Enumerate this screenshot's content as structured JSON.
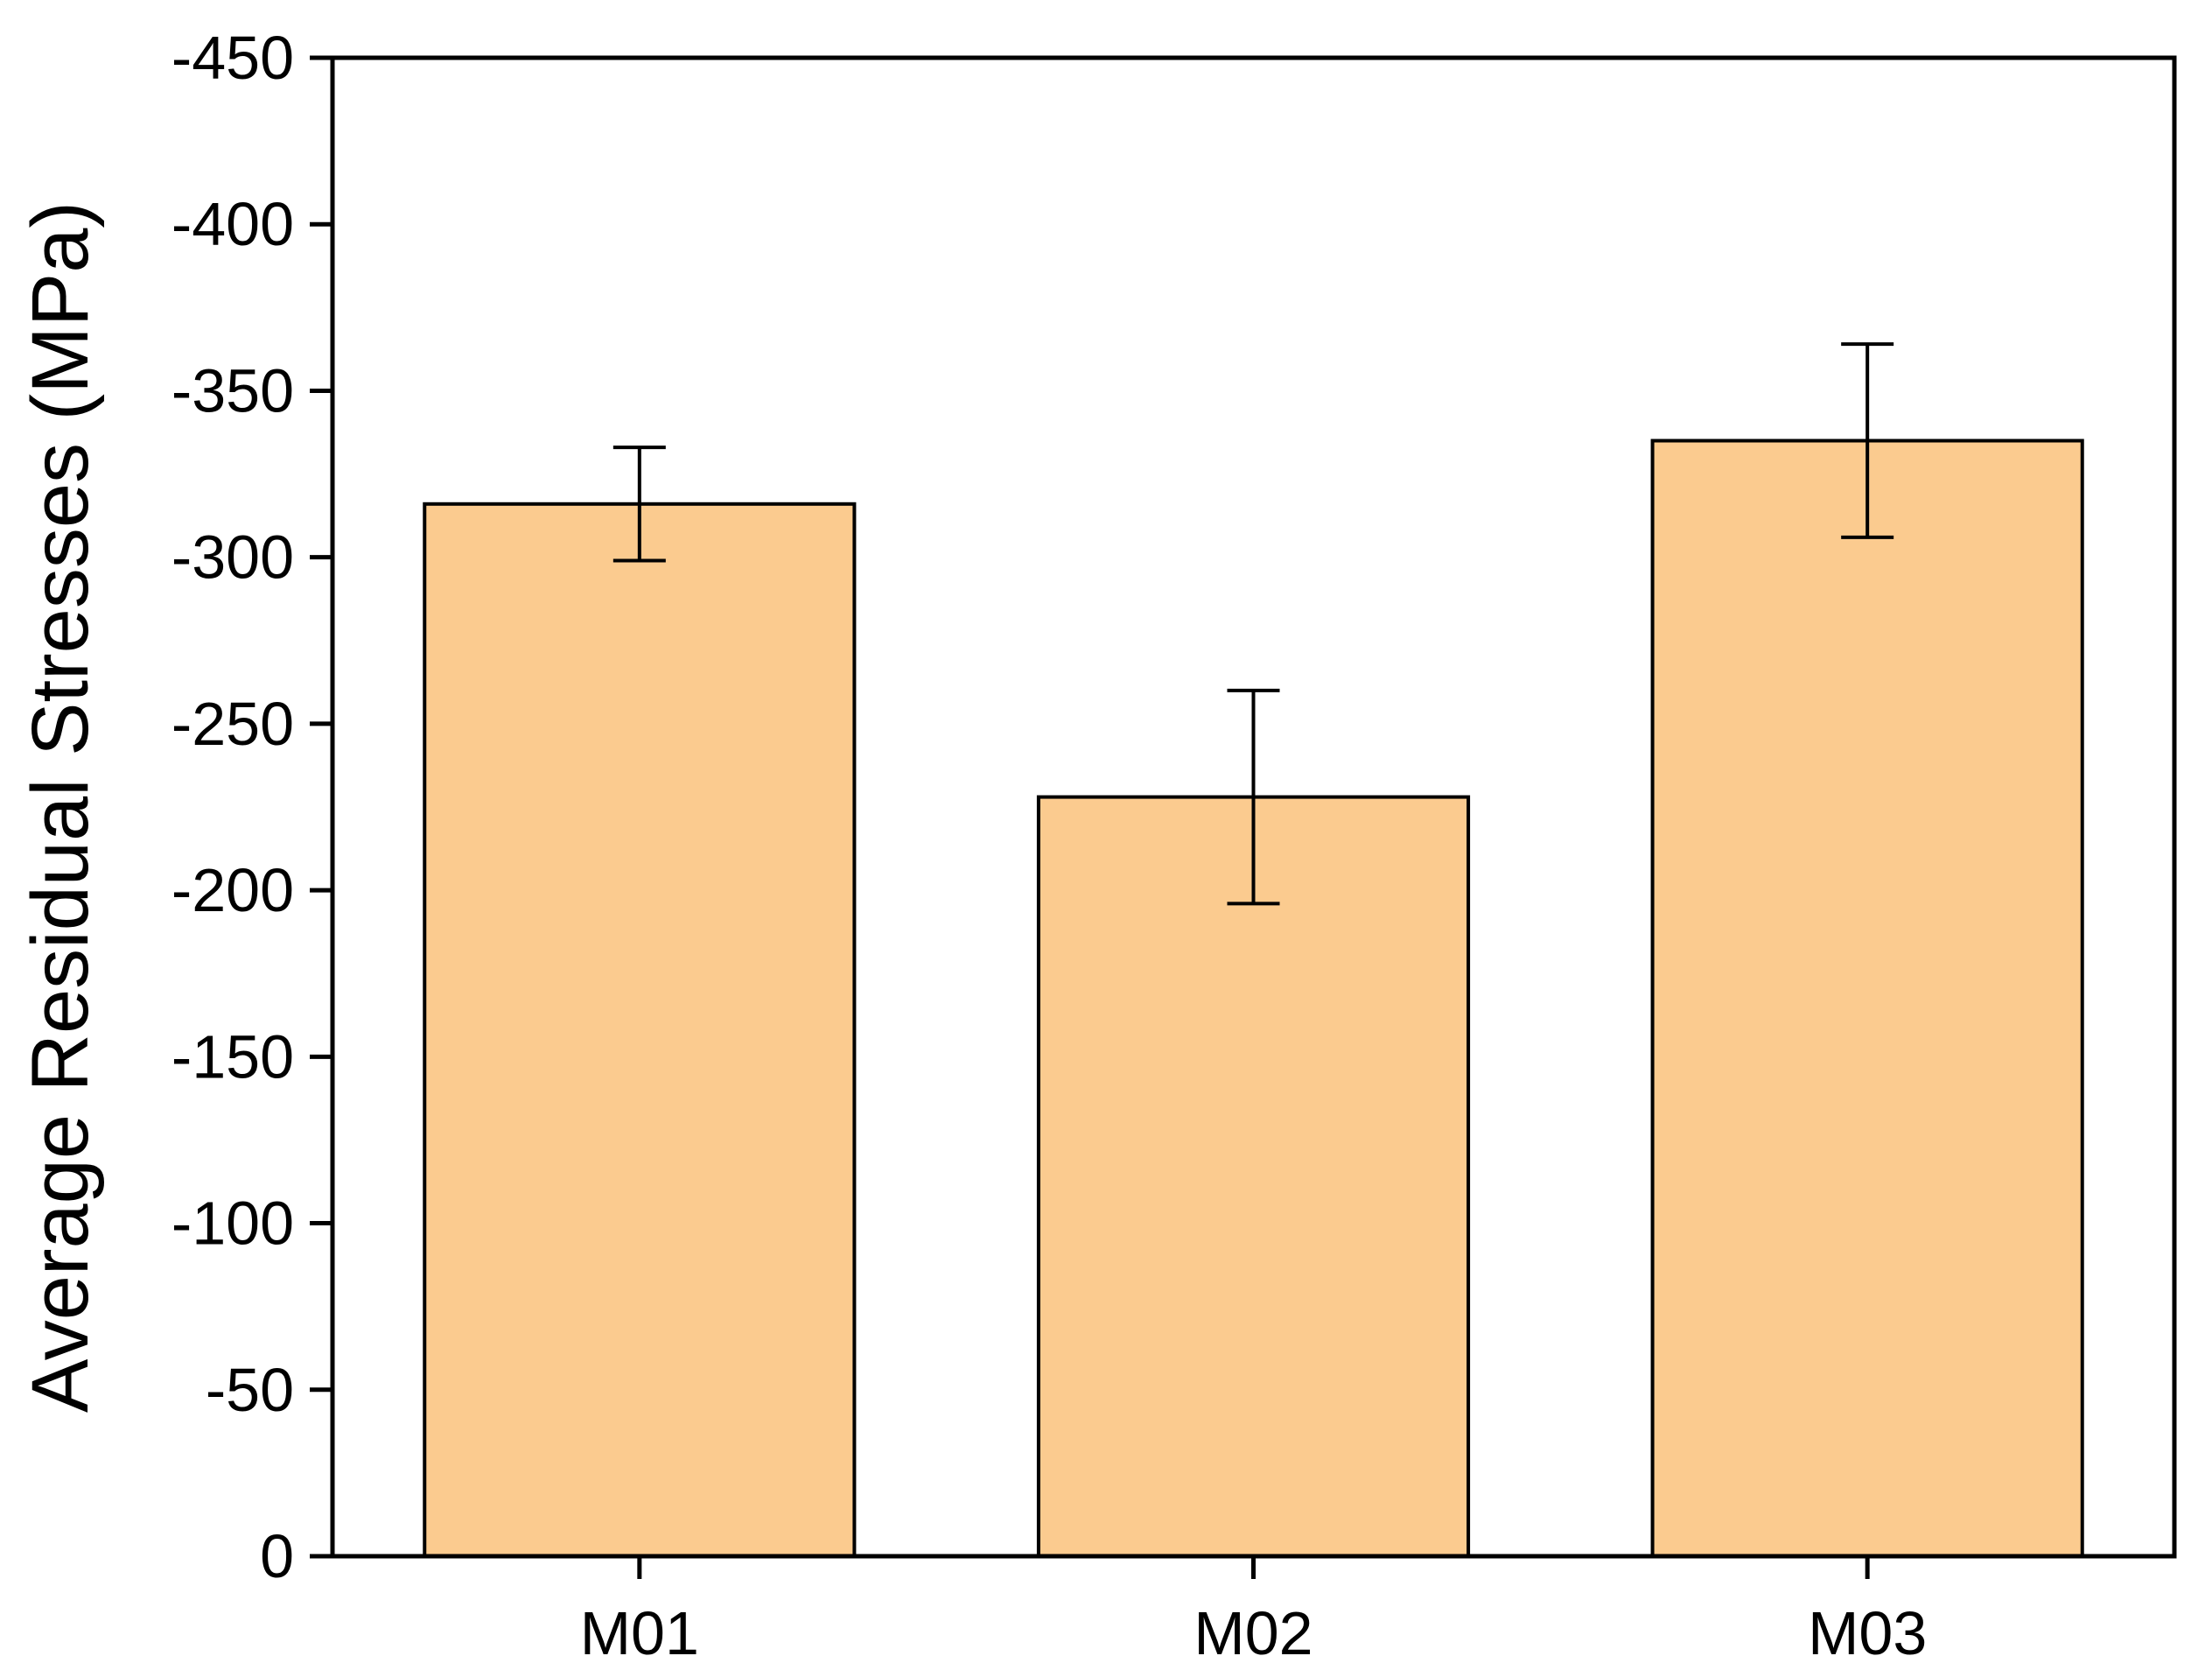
{
  "chart_data": {
    "type": "bar",
    "title": "",
    "xlabel": "",
    "ylabel": "Average Residual Stresses (MPa)",
    "categories": [
      "M01",
      "M02",
      "M03"
    ],
    "values": [
      -316,
      -228,
      -335
    ],
    "errors": [
      17,
      32,
      29
    ],
    "ylim": [
      0,
      -450
    ],
    "yticks": [
      0,
      -50,
      -100,
      -150,
      -200,
      -250,
      -300,
      -350,
      -400,
      -450
    ],
    "axis_inverted": true,
    "grid": false,
    "legend_position": "none",
    "bar_color": "#FBCB8F",
    "bar_border_color": "#000000",
    "error_bar_color": "#000000",
    "axis_color": "#000000",
    "background_color": "#FFFFFF"
  }
}
